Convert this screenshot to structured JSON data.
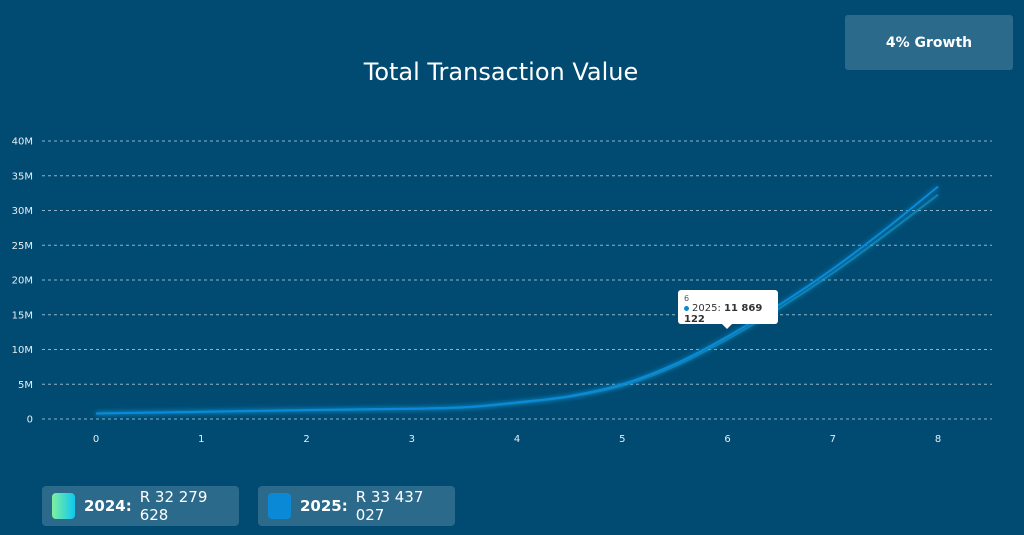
{
  "growth_badge": "4% Growth",
  "chart_data": {
    "type": "line",
    "title": "Total Transaction Value",
    "x": [
      0,
      1,
      2,
      3,
      3.5,
      4,
      4.5,
      5,
      5.5,
      6,
      6.5,
      7,
      7.5,
      8
    ],
    "series": [
      {
        "name": "2024",
        "color": "#5fe3b0",
        "values": [
          0.8,
          1.0,
          1.25,
          1.45,
          1.65,
          2.3,
          3.2,
          4.8,
          7.6,
          11.5,
          16.0,
          21.0,
          26.5,
          32.28
        ]
      },
      {
        "name": "2025",
        "color": "#0a8ad6",
        "values": [
          0.8,
          1.05,
          1.3,
          1.5,
          1.7,
          2.4,
          3.3,
          5.0,
          7.9,
          11.87,
          16.5,
          21.6,
          27.3,
          33.44
        ]
      }
    ],
    "xticks": [
      "0",
      "1",
      "2",
      "3",
      "4",
      "5",
      "6",
      "7",
      "8"
    ],
    "yticks": [
      "0",
      "5M",
      "10M",
      "15M",
      "20M",
      "25M",
      "30M",
      "35M",
      "40M"
    ],
    "xlim": [
      0,
      8
    ],
    "ylim": [
      0,
      40
    ],
    "grid": true,
    "tooltip": {
      "x": "6",
      "series": "2025:",
      "value": "11 869 122"
    }
  },
  "legend": [
    {
      "year": "2024:",
      "total": "R 32 279 628"
    },
    {
      "year": "2025:",
      "total": "R 33 437 027"
    }
  ]
}
